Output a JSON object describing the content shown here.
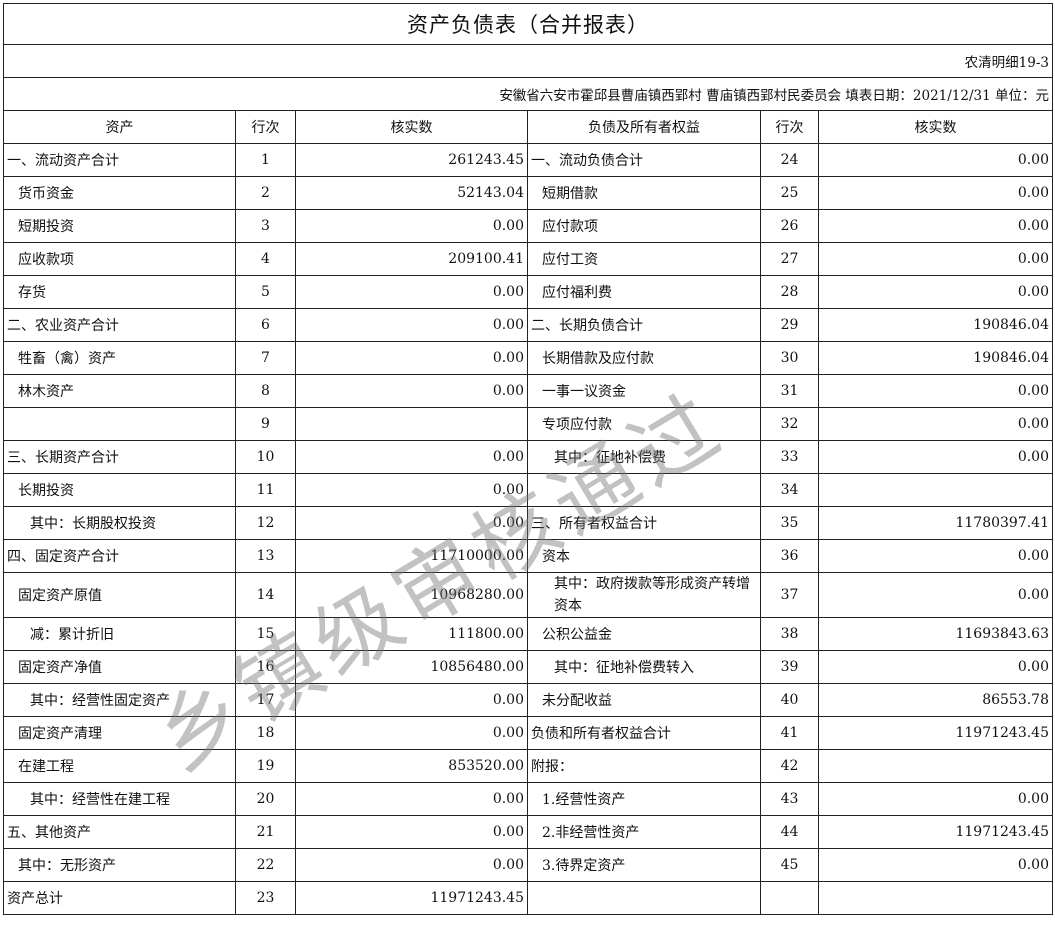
{
  "title": "资产负债表（合并报表）",
  "form_code": "农清明细19-3",
  "info": "安徽省六安市霍邱县曹庙镇西郢村 曹庙镇西郢村民委员会 填表日期：2021/12/31 单位：元",
  "headers": [
    "资产",
    "行次",
    "核实数",
    "负债及所有者权益",
    "行次",
    "核实数"
  ],
  "watermark": "乡镇级审核通过",
  "rows": [
    {
      "l": "一、流动资产合计",
      "ll": 0,
      "ln": "1",
      "lv": "261243.45",
      "r": "一、流动负债合计",
      "rl": 0,
      "rn": "24",
      "rv": "0.00"
    },
    {
      "l": "货币资金",
      "ll": 1,
      "ln": "2",
      "lv": "52143.04",
      "r": "短期借款",
      "rl": 1,
      "rn": "25",
      "rv": "0.00"
    },
    {
      "l": "短期投资",
      "ll": 1,
      "ln": "3",
      "lv": "0.00",
      "r": "应付款项",
      "rl": 1,
      "rn": "26",
      "rv": "0.00"
    },
    {
      "l": "应收款项",
      "ll": 1,
      "ln": "4",
      "lv": "209100.41",
      "r": "应付工资",
      "rl": 1,
      "rn": "27",
      "rv": "0.00"
    },
    {
      "l": "存货",
      "ll": 1,
      "ln": "5",
      "lv": "0.00",
      "r": "应付福利费",
      "rl": 1,
      "rn": "28",
      "rv": "0.00"
    },
    {
      "l": "二、农业资产合计",
      "ll": 0,
      "ln": "6",
      "lv": "0.00",
      "r": "二、长期负债合计",
      "rl": 0,
      "rn": "29",
      "rv": "190846.04"
    },
    {
      "l": "牲畜（禽）资产",
      "ll": 1,
      "ln": "7",
      "lv": "0.00",
      "r": "长期借款及应付款",
      "rl": 1,
      "rn": "30",
      "rv": "190846.04"
    },
    {
      "l": "林木资产",
      "ll": 1,
      "ln": "8",
      "lv": "0.00",
      "r": "一事一议资金",
      "rl": 1,
      "rn": "31",
      "rv": "0.00"
    },
    {
      "l": "",
      "ll": 0,
      "ln": "9",
      "lv": "",
      "r": "专项应付款",
      "rl": 1,
      "rn": "32",
      "rv": "0.00"
    },
    {
      "l": "三、长期资产合计",
      "ll": 0,
      "ln": "10",
      "lv": "0.00",
      "r": "其中：征地补偿费",
      "rl": 2,
      "rn": "33",
      "rv": "0.00"
    },
    {
      "l": "长期投资",
      "ll": 1,
      "ln": "11",
      "lv": "0.00",
      "r": "",
      "rl": 0,
      "rn": "34",
      "rv": ""
    },
    {
      "l": "其中：长期股权投资",
      "ll": 2,
      "ln": "12",
      "lv": "0.00",
      "r": "三、所有者权益合计",
      "rl": 0,
      "rn": "35",
      "rv": "11780397.41"
    },
    {
      "l": "四、固定资产合计",
      "ll": 0,
      "ln": "13",
      "lv": "11710000.00",
      "r": "资本",
      "rl": 1,
      "rn": "36",
      "rv": "0.00"
    },
    {
      "l": "固定资产原值",
      "ll": 1,
      "ln": "14",
      "lv": "10968280.00",
      "r": "其中：政府拨款等形成资产转增资本",
      "rl": 2,
      "rn": "37",
      "rv": "0.00"
    },
    {
      "l": "减：累计折旧",
      "ll": 2,
      "ln": "15",
      "lv": "111800.00",
      "r": "公积公益金",
      "rl": 1,
      "rn": "38",
      "rv": "11693843.63"
    },
    {
      "l": "固定资产净值",
      "ll": 1,
      "ln": "16",
      "lv": "10856480.00",
      "r": "其中：征地补偿费转入",
      "rl": 2,
      "rn": "39",
      "rv": "0.00"
    },
    {
      "l": "其中：经营性固定资产",
      "ll": 2,
      "ln": "17",
      "lv": "0.00",
      "r": "未分配收益",
      "rl": 1,
      "rn": "40",
      "rv": "86553.78"
    },
    {
      "l": "固定资产清理",
      "ll": 1,
      "ln": "18",
      "lv": "0.00",
      "r": "负债和所有者权益合计",
      "rl": 0,
      "rn": "41",
      "rv": "11971243.45"
    },
    {
      "l": "在建工程",
      "ll": 1,
      "ln": "19",
      "lv": "853520.00",
      "r": "附报：",
      "rl": 0,
      "rn": "42",
      "rv": ""
    },
    {
      "l": "其中：经营性在建工程",
      "ll": 2,
      "ln": "20",
      "lv": "0.00",
      "r": "1.经营性资产",
      "rl": 1,
      "rn": "43",
      "rv": "0.00"
    },
    {
      "l": "五、其他资产",
      "ll": 0,
      "ln": "21",
      "lv": "0.00",
      "r": "2.非经营性资产",
      "rl": 1,
      "rn": "44",
      "rv": "11971243.45"
    },
    {
      "l": "其中：无形资产",
      "ll": 1,
      "ln": "22",
      "lv": "0.00",
      "r": "3.待界定资产",
      "rl": 1,
      "rn": "45",
      "rv": "0.00"
    },
    {
      "l": "资产总计",
      "ll": 0,
      "ln": "23",
      "lv": "11971243.45",
      "r": "",
      "rl": 0,
      "rn": "",
      "rv": ""
    }
  ]
}
